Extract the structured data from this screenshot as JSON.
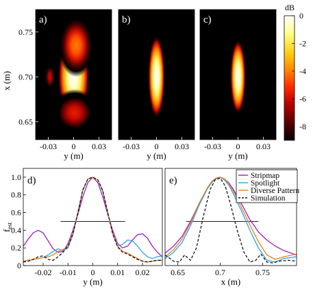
{
  "colors": {
    "stripmap": "#9a1ebf",
    "spotlight": "#2aa4e8",
    "diverse": "#e8801a",
    "simulation": "#111111",
    "colormap": [
      "#000000",
      "#5a0000",
      "#b30000",
      "#ff2a00",
      "#ff8c00",
      "#ffd21a",
      "#ffff8a",
      "#ffffff"
    ]
  },
  "chart_data": [
    {
      "type": "heatmap",
      "panel": "a)",
      "xlabel": "y (m)",
      "ylabel": "x (m)",
      "xlim": [
        -0.045,
        0.045
      ],
      "ylim": [
        0.63,
        0.775
      ],
      "xticks": [
        "-0.03",
        "0",
        "0.03"
      ],
      "yticks": [
        "0.65",
        "0.70",
        "0.75"
      ],
      "blobs": [
        {
          "cx": 0.0,
          "cy": 0.7,
          "sx": 0.0085,
          "sy": 0.022,
          "peak_db": 0
        },
        {
          "cx": 0.003,
          "cy": 0.735,
          "sx": 0.01,
          "sy": 0.016,
          "peak_db": -4
        },
        {
          "cx": 0.001,
          "cy": 0.66,
          "sx": 0.013,
          "sy": 0.012,
          "peak_db": -5.5
        },
        {
          "cx": -0.028,
          "cy": 0.7,
          "sx": 0.0035,
          "sy": 0.008,
          "peak_db": -6
        }
      ]
    },
    {
      "type": "heatmap",
      "panel": "b)",
      "xlabel": "y (m)",
      "xlim": [
        -0.045,
        0.045
      ],
      "ylim": [
        0.63,
        0.775
      ],
      "xticks": [
        "-0.03",
        "0",
        "0.03"
      ],
      "blobs": [
        {
          "cx": 0.0,
          "cy": 0.7,
          "sx": 0.0045,
          "sy": 0.021,
          "peak_db": 0
        }
      ]
    },
    {
      "type": "heatmap",
      "panel": "c)",
      "xlabel": "y (m)",
      "xlim": [
        -0.045,
        0.045
      ],
      "ylim": [
        0.63,
        0.775
      ],
      "xticks": [
        "-0.03",
        "0",
        "0.03"
      ],
      "blobs": [
        {
          "cx": 0.0,
          "cy": 0.7,
          "sx": 0.0042,
          "sy": 0.019,
          "peak_db": 0
        }
      ]
    },
    {
      "type": "colorbar",
      "label": "dB",
      "range": [
        -9,
        0
      ],
      "ticks": [
        "0",
        "-2",
        "-4",
        "-6",
        "-8"
      ]
    },
    {
      "type": "line",
      "panel": "d)",
      "xlabel": "y (m)",
      "ylabel": "f",
      "ylabel_sub": "est",
      "xlim": [
        -0.028,
        0.028
      ],
      "ylim": [
        0,
        1.1
      ],
      "xticks": [
        "-0.02",
        "-0.01",
        "0",
        "0.01",
        "0.02"
      ],
      "yticks": [
        "0",
        "0.2",
        "0.4",
        "0.6",
        "0.8",
        "1.0"
      ],
      "hline": {
        "y": 0.5,
        "x0": -0.013,
        "x1": 0.013
      },
      "series": [
        {
          "name": "Stripmap",
          "x": [
            -0.028,
            -0.026,
            -0.024,
            -0.022,
            -0.02,
            -0.018,
            -0.016,
            -0.014,
            -0.012,
            -0.01,
            -0.008,
            -0.006,
            -0.004,
            -0.002,
            0.0,
            0.002,
            0.004,
            0.006,
            0.008,
            0.01,
            0.012,
            0.014,
            0.016,
            0.018,
            0.02,
            0.022,
            0.024,
            0.026,
            0.028
          ],
          "y": [
            0.22,
            0.3,
            0.37,
            0.4,
            0.37,
            0.28,
            0.19,
            0.15,
            0.16,
            0.25,
            0.4,
            0.58,
            0.78,
            0.94,
            1.0,
            0.94,
            0.78,
            0.58,
            0.4,
            0.25,
            0.2,
            0.22,
            0.29,
            0.35,
            0.36,
            0.31,
            0.22,
            0.15,
            0.1
          ]
        },
        {
          "name": "Spotlight",
          "x": [
            -0.028,
            -0.026,
            -0.024,
            -0.022,
            -0.02,
            -0.018,
            -0.016,
            -0.014,
            -0.012,
            -0.01,
            -0.008,
            -0.006,
            -0.004,
            -0.002,
            0.0,
            0.002,
            0.004,
            0.006,
            0.008,
            0.01,
            0.012,
            0.014,
            0.016,
            0.018,
            0.02,
            0.022,
            0.024,
            0.026,
            0.028
          ],
          "y": [
            0.05,
            0.06,
            0.07,
            0.08,
            0.09,
            0.12,
            0.16,
            0.19,
            0.17,
            0.2,
            0.35,
            0.6,
            0.85,
            0.98,
            1.0,
            0.97,
            0.84,
            0.6,
            0.36,
            0.22,
            0.24,
            0.29,
            0.28,
            0.22,
            0.15,
            0.1,
            0.08,
            0.1,
            0.11
          ]
        },
        {
          "name": "Diverse Pattern",
          "x": [
            -0.028,
            -0.026,
            -0.024,
            -0.022,
            -0.02,
            -0.018,
            -0.016,
            -0.014,
            -0.012,
            -0.01,
            -0.008,
            -0.006,
            -0.004,
            -0.002,
            0.0,
            0.002,
            0.004,
            0.006,
            0.008,
            0.01,
            0.012,
            0.014,
            0.016,
            0.018,
            0.02,
            0.022,
            0.024,
            0.026,
            0.028
          ],
          "y": [
            0.05,
            0.06,
            0.07,
            0.08,
            0.09,
            0.1,
            0.12,
            0.16,
            0.18,
            0.22,
            0.36,
            0.61,
            0.86,
            0.98,
            1.0,
            0.97,
            0.85,
            0.6,
            0.36,
            0.22,
            0.16,
            0.14,
            0.11,
            0.08,
            0.05,
            0.04,
            0.05,
            0.06,
            0.06
          ]
        },
        {
          "name": "Simulation",
          "dashed": true,
          "x": [
            -0.028,
            -0.026,
            -0.024,
            -0.022,
            -0.02,
            -0.018,
            -0.016,
            -0.014,
            -0.012,
            -0.01,
            -0.008,
            -0.006,
            -0.004,
            -0.002,
            0.0,
            0.002,
            0.004,
            0.006,
            0.008,
            0.01,
            0.012,
            0.014,
            0.016,
            0.018,
            0.02,
            0.022,
            0.024,
            0.026,
            0.028
          ],
          "y": [
            0.04,
            0.05,
            0.07,
            0.1,
            0.11,
            0.07,
            0.06,
            0.1,
            0.15,
            0.22,
            0.36,
            0.6,
            0.86,
            0.98,
            1.0,
            0.97,
            0.85,
            0.6,
            0.36,
            0.21,
            0.15,
            0.13,
            0.1,
            0.07,
            0.05,
            0.04,
            0.05,
            0.06,
            0.06
          ]
        }
      ]
    },
    {
      "type": "line",
      "panel": "e)",
      "xlabel": "x (m)",
      "xlim": [
        0.635,
        0.79
      ],
      "ylim": [
        0,
        1.1
      ],
      "xticks": [
        "0.65",
        "0.7",
        "0.75"
      ],
      "hline": {
        "y": 0.5,
        "x0": 0.66,
        "x1": 0.745
      },
      "legend": {
        "placement": "top-right"
      },
      "series": [
        {
          "name": "Stripmap",
          "x": [
            0.635,
            0.645,
            0.655,
            0.665,
            0.675,
            0.685,
            0.69,
            0.695,
            0.7,
            0.705,
            0.71,
            0.715,
            0.725,
            0.735,
            0.745,
            0.755,
            0.765,
            0.775,
            0.79
          ],
          "y": [
            0.14,
            0.22,
            0.33,
            0.5,
            0.7,
            0.88,
            0.95,
            0.99,
            1.0,
            0.98,
            0.94,
            0.87,
            0.7,
            0.52,
            0.38,
            0.29,
            0.22,
            0.17,
            0.12
          ]
        },
        {
          "name": "Spotlight",
          "x": [
            0.635,
            0.645,
            0.655,
            0.665,
            0.675,
            0.685,
            0.69,
            0.695,
            0.7,
            0.705,
            0.71,
            0.715,
            0.725,
            0.735,
            0.745,
            0.755,
            0.765,
            0.775,
            0.79
          ],
          "y": [
            0.08,
            0.15,
            0.26,
            0.45,
            0.68,
            0.87,
            0.94,
            0.98,
            1.0,
            0.97,
            0.91,
            0.82,
            0.62,
            0.4,
            0.2,
            0.06,
            0.04,
            0.08,
            0.1
          ]
        },
        {
          "name": "Diverse Pattern",
          "x": [
            0.635,
            0.645,
            0.655,
            0.665,
            0.675,
            0.685,
            0.69,
            0.695,
            0.7,
            0.705,
            0.71,
            0.715,
            0.725,
            0.735,
            0.745,
            0.755,
            0.765,
            0.775,
            0.79
          ],
          "y": [
            0.1,
            0.18,
            0.3,
            0.48,
            0.7,
            0.88,
            0.95,
            0.99,
            1.0,
            0.98,
            0.93,
            0.85,
            0.66,
            0.46,
            0.27,
            0.12,
            0.07,
            0.1,
            0.13
          ]
        },
        {
          "name": "Simulation",
          "dashed": true,
          "x": [
            0.635,
            0.645,
            0.652,
            0.658,
            0.665,
            0.672,
            0.68,
            0.688,
            0.694,
            0.7,
            0.706,
            0.712,
            0.72,
            0.728,
            0.735,
            0.742,
            0.748,
            0.755,
            0.762,
            0.77,
            0.78,
            0.79
          ],
          "y": [
            0.12,
            0.05,
            0.04,
            0.12,
            0.06,
            0.2,
            0.55,
            0.86,
            0.97,
            0.99,
            0.9,
            0.7,
            0.4,
            0.15,
            0.04,
            0.06,
            0.13,
            0.04,
            0.03,
            0.05,
            0.06,
            0.05
          ]
        }
      ]
    }
  ]
}
